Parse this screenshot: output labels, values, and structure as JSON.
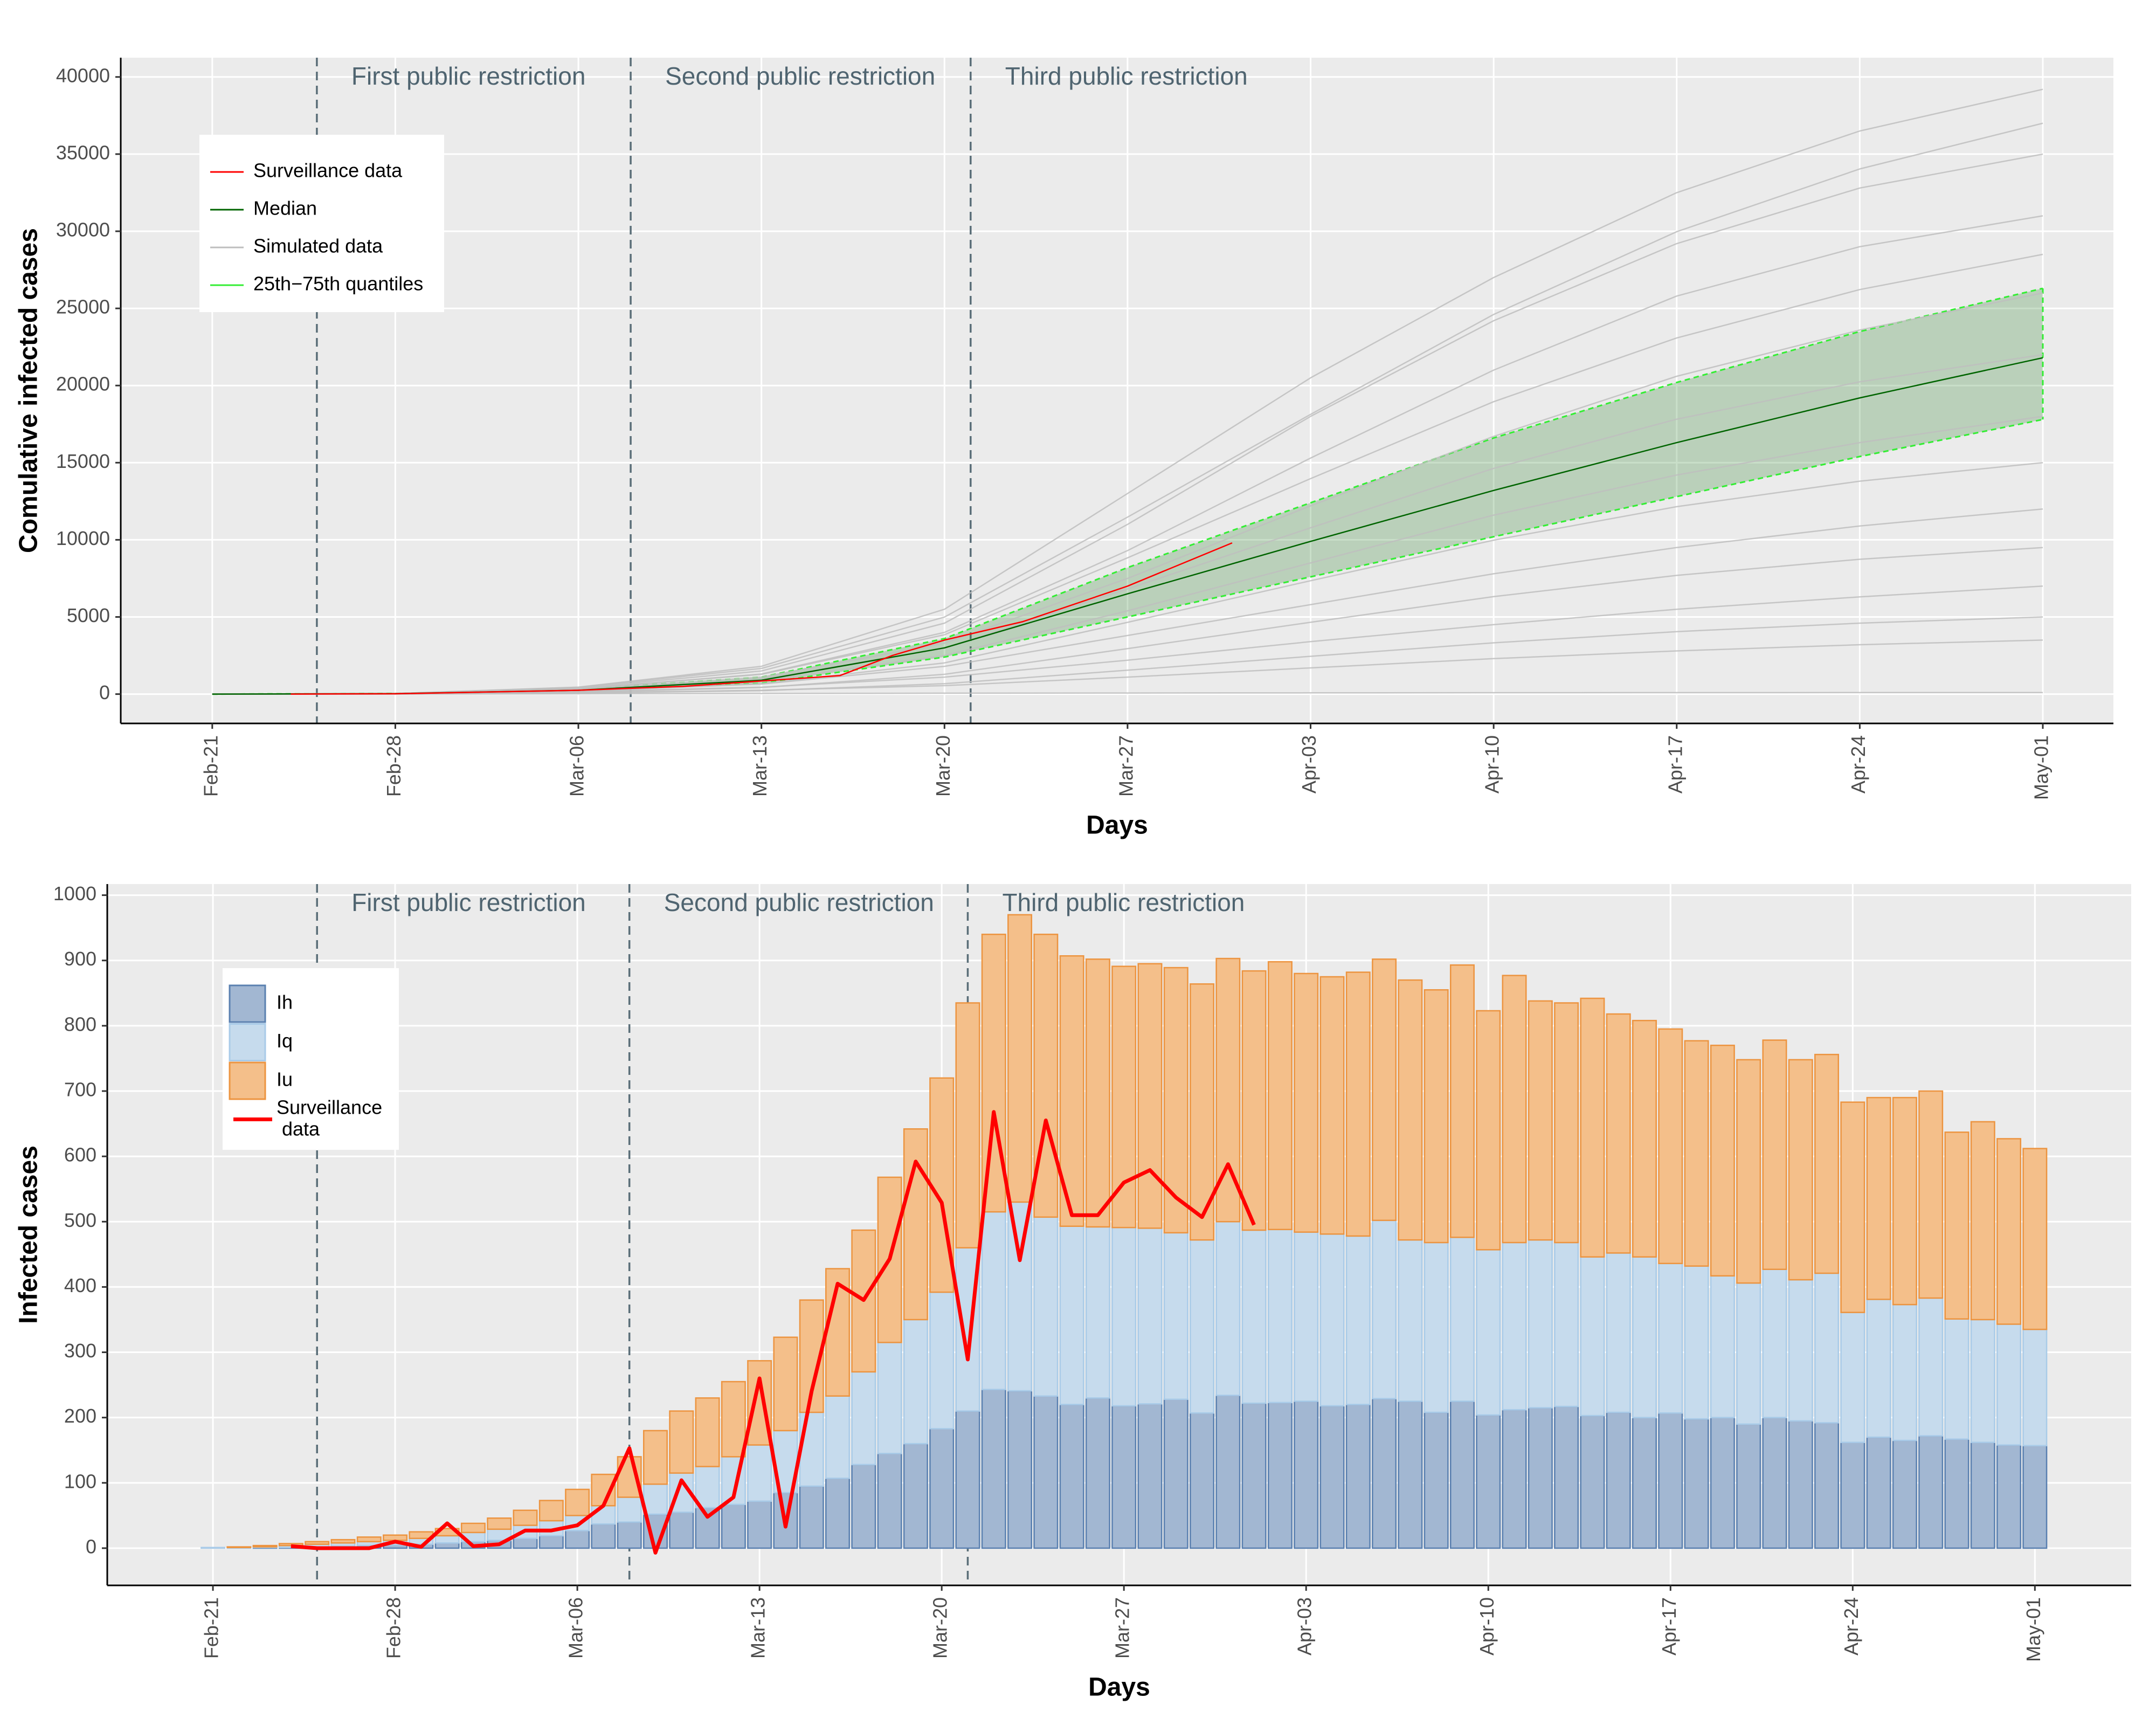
{
  "chart_data": [
    {
      "type": "line",
      "ylabel": "Comulative infected cases",
      "xlabel": "Days",
      "x": [
        0,
        7,
        14,
        21,
        28,
        35,
        42,
        49,
        56,
        63,
        70
      ],
      "xlim": [
        -3.5,
        72.7
      ],
      "ylim": [
        -1900,
        41250
      ],
      "xticks": [
        {
          "value": 0,
          "label": "Feb-21"
        },
        {
          "value": 7,
          "label": "Feb-28"
        },
        {
          "value": 14,
          "label": "Mar-06"
        },
        {
          "value": 21,
          "label": "Mar-13"
        },
        {
          "value": 28,
          "label": "Mar-20"
        },
        {
          "value": 35,
          "label": "Mar-27"
        },
        {
          "value": 42,
          "label": "Apr-03"
        },
        {
          "value": 49,
          "label": "Apr-10"
        },
        {
          "value": 56,
          "label": "Apr-17"
        },
        {
          "value": 63,
          "label": "Apr-24"
        },
        {
          "value": 70,
          "label": "May-01"
        }
      ],
      "yticks": [
        0,
        5000,
        10000,
        15000,
        20000,
        25000,
        30000,
        35000,
        40000
      ],
      "grid": true,
      "legend": "upper left",
      "vlines": [
        {
          "x": 4,
          "label": "First public restriction"
        },
        {
          "x": 16,
          "label": "Second public restriction"
        },
        {
          "x": 29,
          "label": "Third public restriction"
        }
      ],
      "series": [
        {
          "name": "Surveillance data",
          "color": "#ff0000",
          "x": [
            3,
            7,
            14,
            18,
            21,
            24,
            26,
            28,
            31,
            35,
            39
          ],
          "values": [
            0,
            20,
            250,
            500,
            850,
            1200,
            2500,
            3500,
            4700,
            7000,
            9800
          ]
        },
        {
          "name": "Median",
          "color": "#006400",
          "values": [
            0,
            30,
            250,
            900,
            3000,
            6500,
            9900,
            13200,
            16300,
            19200,
            21800
          ]
        },
        {
          "name": "Simulated data",
          "color": "#bebebe",
          "lines": [
            [
              0,
              40,
              450,
              1800,
              5500,
              13000,
              20500,
              27000,
              32500,
              36500,
              39200
            ],
            [
              0,
              37,
              444,
              1665,
              4995,
              11470,
              18130,
              24605,
              29970,
              34040,
              37000
            ],
            [
              0,
              35,
              400,
              1500,
              4600,
              11000,
              18000,
              24200,
              29200,
              32800,
              35000
            ],
            [
              0,
              30,
              350,
              1300,
              4000,
              9300,
              15300,
              21000,
              25800,
              29000,
              31000
            ],
            [
              0,
              29,
              342,
              1283,
              3848,
              8835,
              13965,
              18953,
              23085,
              26220,
              28500
            ],
            [
              0,
              30,
              300,
              1100,
              3300,
              7500,
              12200,
              16700,
              20600,
              23600,
              26000
            ],
            [
              0,
              22,
              264,
              990,
              2970,
              6820,
              10780,
              14630,
              17820,
              20240,
              22000
            ],
            [
              0,
              25,
              250,
              850,
              2500,
              5400,
              8500,
              11600,
              14200,
              16300,
              18000
            ],
            [
              0,
              15,
              180,
              675,
              2025,
              4650,
              7350,
              9975,
              12150,
              13800,
              15000
            ],
            [
              0,
              20,
              200,
              650,
              1800,
              3800,
              5800,
              7800,
              9500,
              10900,
              12000
            ],
            [
              0,
              10,
              114,
              428,
              1283,
              2945,
              4655,
              6318,
              7695,
              8740,
              9500
            ],
            [
              0,
              15,
              150,
              450,
              1100,
              2200,
              3400,
              4500,
              5500,
              6300,
              7000
            ],
            [
              0,
              5,
              60,
              225,
              675,
              1550,
              2450,
              3325,
              4050,
              4600,
              5000
            ],
            [
              0,
              10,
              80,
              250,
              550,
              1100,
              1700,
              2300,
              2800,
              3200,
              3500
            ],
            [
              0,
              5,
              20,
              40,
              60,
              70,
              80,
              90,
              95,
              98,
              100
            ]
          ]
        },
        {
          "name": "25th−75th quantiles",
          "color": "#33ee33",
          "lower": [
            0,
            25,
            200,
            700,
            2400,
            5000,
            7600,
            10200,
            12800,
            15400,
            17800
          ],
          "upper": [
            0,
            35,
            300,
            1100,
            3600,
            8200,
            12400,
            16600,
            20200,
            23500,
            26300
          ]
        }
      ]
    },
    {
      "type": "bar",
      "ylabel": "Infected cases",
      "xlabel": "Days",
      "x": [
        0,
        1,
        2,
        3,
        4,
        5,
        6,
        7,
        8,
        9,
        10,
        11,
        12,
        13,
        14,
        15,
        16,
        17,
        18,
        19,
        20,
        21,
        22,
        23,
        24,
        25,
        26,
        27,
        28,
        29,
        30,
        31,
        32,
        33,
        34,
        35,
        36,
        37,
        38,
        39,
        40,
        41,
        42,
        43,
        44,
        45,
        46,
        47,
        48,
        49,
        50,
        51,
        52,
        53,
        54,
        55,
        56,
        57,
        58,
        59,
        60,
        61,
        62,
        63,
        64,
        65,
        66,
        67,
        68,
        69,
        70
      ],
      "xlim": [
        -4.06,
        73.7
      ],
      "ylim": [
        -57,
        1017
      ],
      "xticks": [
        {
          "value": 0,
          "label": "Feb-21"
        },
        {
          "value": 7,
          "label": "Feb-28"
        },
        {
          "value": 14,
          "label": "Mar-06"
        },
        {
          "value": 21,
          "label": "Mar-13"
        },
        {
          "value": 28,
          "label": "Mar-20"
        },
        {
          "value": 35,
          "label": "Mar-27"
        },
        {
          "value": 42,
          "label": "Apr-03"
        },
        {
          "value": 49,
          "label": "Apr-10"
        },
        {
          "value": 56,
          "label": "Apr-17"
        },
        {
          "value": 63,
          "label": "Apr-24"
        },
        {
          "value": 70,
          "label": "May-01"
        }
      ],
      "yticks": [
        0,
        100,
        200,
        300,
        400,
        500,
        600,
        700,
        800,
        900,
        1000
      ],
      "grid": true,
      "legend": "upper left",
      "vlines": [
        {
          "x": 4,
          "label": "First public restriction"
        },
        {
          "x": 16,
          "label": "Second public restriction"
        },
        {
          "x": 29,
          "label": "Third public restriction"
        }
      ],
      "series": [
        {
          "name": "Ih",
          "color": "#a2b7d2",
          "border": "#5a80b0",
          "values": [
            0,
            0,
            1,
            1,
            2,
            3,
            4,
            5,
            6,
            8,
            10,
            12,
            15,
            19,
            27,
            37,
            40,
            52,
            55,
            62,
            67,
            72,
            85,
            95,
            107,
            128,
            145,
            160,
            183,
            210,
            243,
            241,
            233,
            220,
            230,
            218,
            221,
            228,
            207,
            234,
            222,
            223,
            225,
            218,
            220,
            229,
            225,
            208,
            225,
            204,
            212,
            215,
            217,
            203,
            208,
            200,
            207,
            198,
            200,
            190,
            200,
            195,
            192,
            162,
            170,
            165,
            172,
            167,
            162,
            158,
            157
          ]
        },
        {
          "name": "Iq",
          "color": "#c6dbed",
          "border": "#a9cbe8",
          "values": [
            1,
            1,
            1,
            3,
            4,
            5,
            6,
            7,
            9,
            11,
            14,
            17,
            20,
            23,
            23,
            28,
            38,
            46,
            60,
            63,
            73,
            86,
            95,
            113,
            126,
            142,
            170,
            190,
            209,
            250,
            272,
            289,
            274,
            273,
            262,
            273,
            269,
            255,
            265,
            266,
            265,
            265,
            259,
            263,
            258,
            273,
            247,
            260,
            251,
            253,
            256,
            257,
            251,
            243,
            244,
            246,
            229,
            234,
            217,
            216,
            227,
            216,
            229,
            199,
            211,
            208,
            211,
            184,
            188,
            185,
            178
          ]
        },
        {
          "name": "Iu",
          "color": "#f4bf8a",
          "border": "#ec9440",
          "values": [
            0,
            1,
            2,
            3,
            4,
            5,
            7,
            8,
            10,
            11,
            14,
            17,
            23,
            31,
            40,
            48,
            62,
            82,
            95,
            105,
            115,
            129,
            143,
            172,
            195,
            217,
            253,
            292,
            328,
            375,
            425,
            440,
            433,
            414,
            410,
            400,
            405,
            406,
            392,
            403,
            397,
            410,
            396,
            394,
            404,
            400,
            398,
            387,
            417,
            366,
            409,
            366,
            367,
            396,
            366,
            362,
            359,
            345,
            353,
            342,
            351,
            337,
            335,
            322,
            309,
            317,
            317,
            286,
            303,
            284,
            277
          ]
        },
        {
          "name": "Surveillance\n data",
          "type": "line",
          "color": "#ff0000",
          "values": [
            null,
            null,
            null,
            3,
            0,
            0,
            0,
            10,
            2,
            38,
            3,
            6,
            27,
            27,
            35,
            65,
            153,
            -7,
            104,
            48,
            78,
            260,
            33,
            240,
            405,
            380,
            443,
            592,
            529,
            289,
            668,
            441,
            655,
            510,
            510,
            560,
            579,
            537,
            507,
            588,
            495,
            null,
            null,
            null,
            null,
            null,
            null,
            null,
            null,
            null,
            null,
            null,
            null,
            null,
            null,
            null,
            null,
            null,
            null,
            null,
            null,
            null,
            null,
            null,
            null,
            null,
            null,
            null,
            null,
            null,
            null
          ]
        }
      ]
    }
  ]
}
